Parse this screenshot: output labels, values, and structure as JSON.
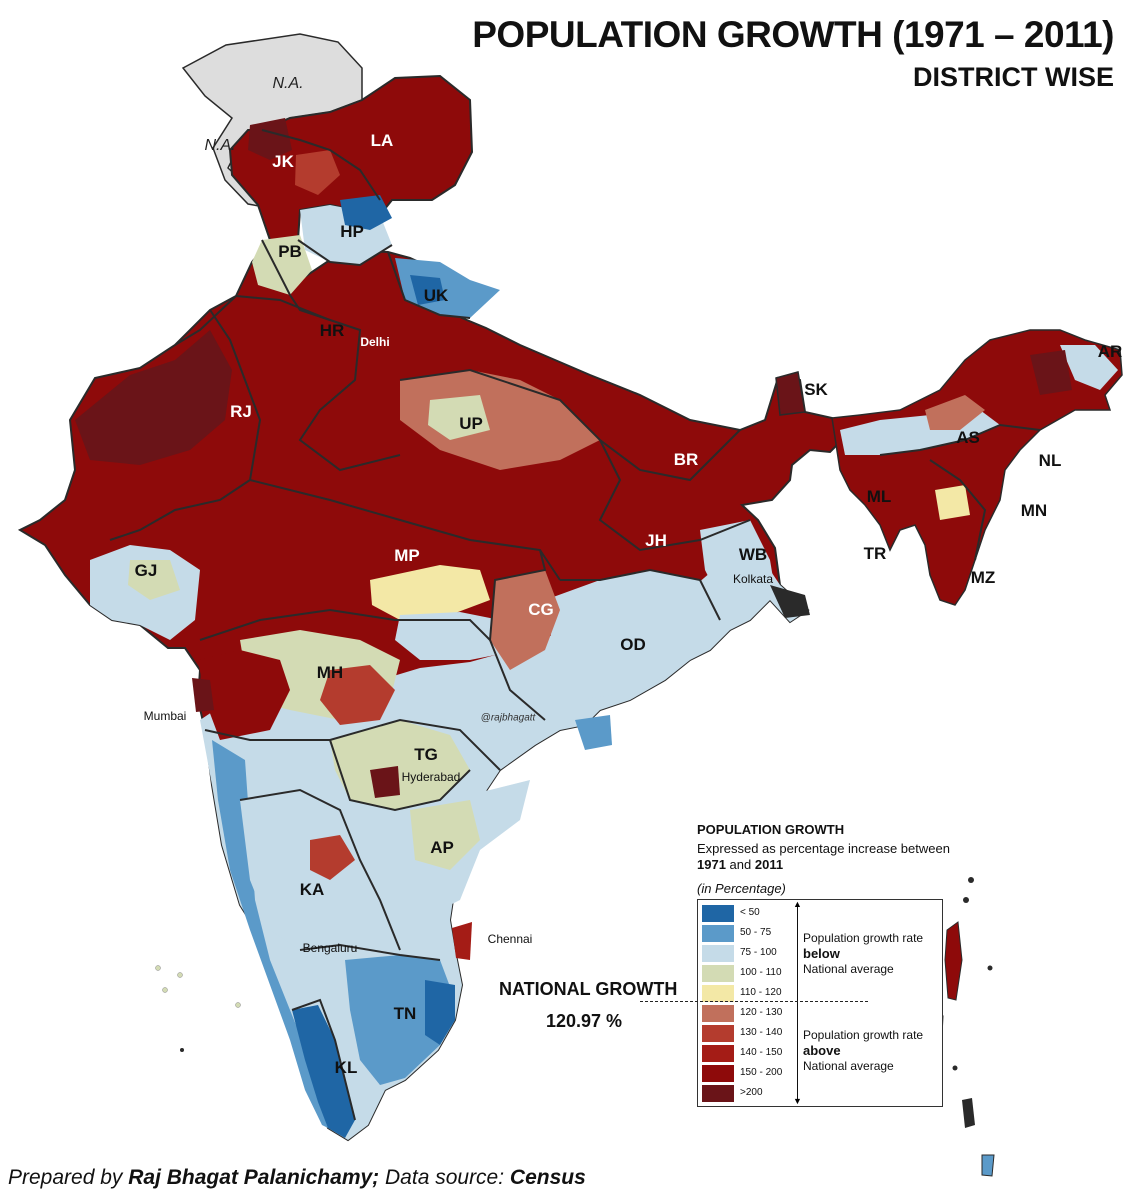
{
  "title": "POPULATION GROWTH (1971 – 2011)",
  "subtitle": "DISTRICT WISE",
  "colors": {
    "lt50": "#1f66a5",
    "r50_75": "#5b9ac9",
    "r75_100": "#c5dbe8",
    "r100_110": "#d3dbb4",
    "r110_120": "#f3e8a6",
    "r120_130": "#c1705c",
    "r130_140": "#b43c2e",
    "r140_150": "#a41c16",
    "r150_200": "#8e0a0a",
    "gt200": "#6a1418",
    "na": "#dddddd",
    "border": "#2a2a2a"
  },
  "na_labels": [
    "N.A.",
    "N.A."
  ],
  "states": [
    {
      "code": "LA"
    },
    {
      "code": "JK"
    },
    {
      "code": "HP"
    },
    {
      "code": "PB"
    },
    {
      "code": "UK"
    },
    {
      "code": "HR"
    },
    {
      "code": "RJ"
    },
    {
      "code": "UP"
    },
    {
      "code": "BR"
    },
    {
      "code": "SK"
    },
    {
      "code": "AR"
    },
    {
      "code": "AS"
    },
    {
      "code": "NL"
    },
    {
      "code": "ML"
    },
    {
      "code": "MN"
    },
    {
      "code": "TR"
    },
    {
      "code": "MZ"
    },
    {
      "code": "GJ"
    },
    {
      "code": "MP"
    },
    {
      "code": "JH"
    },
    {
      "code": "WB"
    },
    {
      "code": "CG"
    },
    {
      "code": "OD"
    },
    {
      "code": "MH"
    },
    {
      "code": "TG"
    },
    {
      "code": "AP"
    },
    {
      "code": "KA"
    },
    {
      "code": "TN"
    },
    {
      "code": "KL"
    }
  ],
  "cities": [
    "Delhi",
    "Kolkata",
    "Mumbai",
    "Hyderabad",
    "Chennai",
    "Bengaluru"
  ],
  "watermark": "@rajbhagatt",
  "legend": {
    "title": "POPULATION GROWTH",
    "desc_prefix": "Expressed as percentage increase between",
    "year_start": "1971",
    "desc_and": "and",
    "year_end": "2011",
    "unit": "(in Percentage)",
    "ranges": [
      "< 50",
      "50 - 75",
      "75 - 100",
      "100 - 110",
      "110 - 120",
      "120 - 130",
      "130 - 140",
      "140 - 150",
      "150 - 200",
      ">200"
    ],
    "below_prefix": "Population growth rate",
    "below_word": "below",
    "below_suffix": "National average",
    "above_prefix": "Population growth rate",
    "above_word": "above",
    "above_suffix": "National average"
  },
  "national": {
    "label": "NATIONAL GROWTH",
    "value": "120.97 %"
  },
  "credit": {
    "prefix": "Prepared by",
    "author": "Raj Bhagat Palanichamy;",
    "middle": "Data source:",
    "source": "Census"
  }
}
